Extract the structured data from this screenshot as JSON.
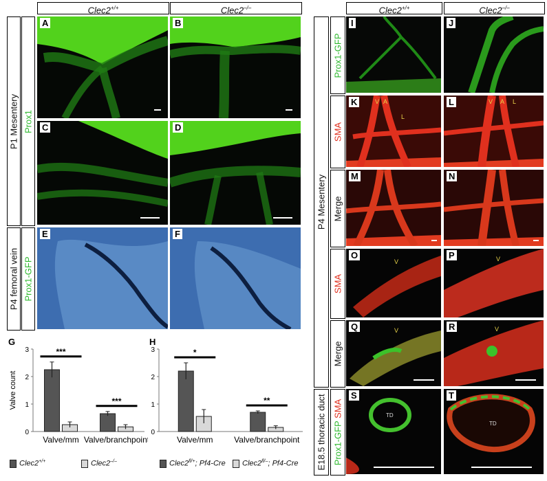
{
  "figure": {
    "col_headers": {
      "left_wt": {
        "base": "Clec2",
        "sup": "+/+"
      },
      "left_ko": {
        "base": "Clec2",
        "sup": "–/–"
      },
      "right_wt": {
        "base": "Clec2",
        "sup": "+/+"
      },
      "right_ko": {
        "base": "Clec2",
        "sup": "–/–"
      }
    },
    "row_labels": {
      "p1_mesentery": "P1 Mesentery",
      "prox1": "Prox1",
      "p4_femoral": "P4 femoral vein",
      "prox1_gfp": "Prox1-GFP",
      "p4_mesentery": "P4 Mesentery",
      "sma": "SMA",
      "merge": "Merge",
      "e18_thoracic": "E18.5 thoracic duct",
      "prox1_gfp_part": "Prox1-GFP ",
      "sma_part": "SMA"
    },
    "panel_letters": [
      "A",
      "B",
      "C",
      "D",
      "E",
      "F",
      "I",
      "J",
      "K",
      "L",
      "M",
      "N",
      "O",
      "P",
      "Q",
      "R",
      "S",
      "T"
    ],
    "annotations": {
      "v": "V",
      "a": "A",
      "l": "L",
      "td": "TD"
    },
    "colors": {
      "green": "#4cc62b",
      "red": "#e0301e",
      "bar_dark": "#555555",
      "bar_light": "#d9d9d9"
    },
    "legend": {
      "wt": {
        "base": "Clec2",
        "sup": "+/+"
      },
      "ko": {
        "base": "Clec2",
        "sup": "–/–"
      },
      "flox": {
        "base": "Clec2",
        "sup": "fl/+",
        "rest": "; Pf4-Cre"
      },
      "flox_ko": {
        "base": "Clec2",
        "sup": "fl/–",
        "rest": "; Pf4-Cre"
      }
    }
  },
  "chart_data": [
    {
      "panel": "G",
      "type": "bar",
      "ylabel": "Valve count",
      "ylim": [
        0,
        3
      ],
      "yticks": [
        "3",
        "2",
        "1",
        "0"
      ],
      "categories": [
        "Valve/mm",
        "Valve/branchpoint"
      ],
      "series": [
        {
          "values": [
            2.25,
            0.65
          ],
          "errors": [
            0.28,
            0.08
          ]
        },
        {
          "values": [
            0.25,
            0.17
          ],
          "errors": [
            0.1,
            0.08
          ]
        }
      ],
      "significance": [
        "***",
        "***"
      ]
    },
    {
      "panel": "H",
      "type": "bar",
      "ylim": [
        0,
        3
      ],
      "yticks": [
        "3",
        "2",
        "1",
        "0"
      ],
      "categories": [
        "Valve/mm",
        "Valve/branchpoint"
      ],
      "series": [
        {
          "values": [
            2.2,
            0.7
          ],
          "errors": [
            0.3,
            0.05
          ]
        },
        {
          "values": [
            0.55,
            0.15
          ],
          "errors": [
            0.25,
            0.06
          ]
        }
      ],
      "significance": [
        "*",
        "**"
      ]
    }
  ]
}
